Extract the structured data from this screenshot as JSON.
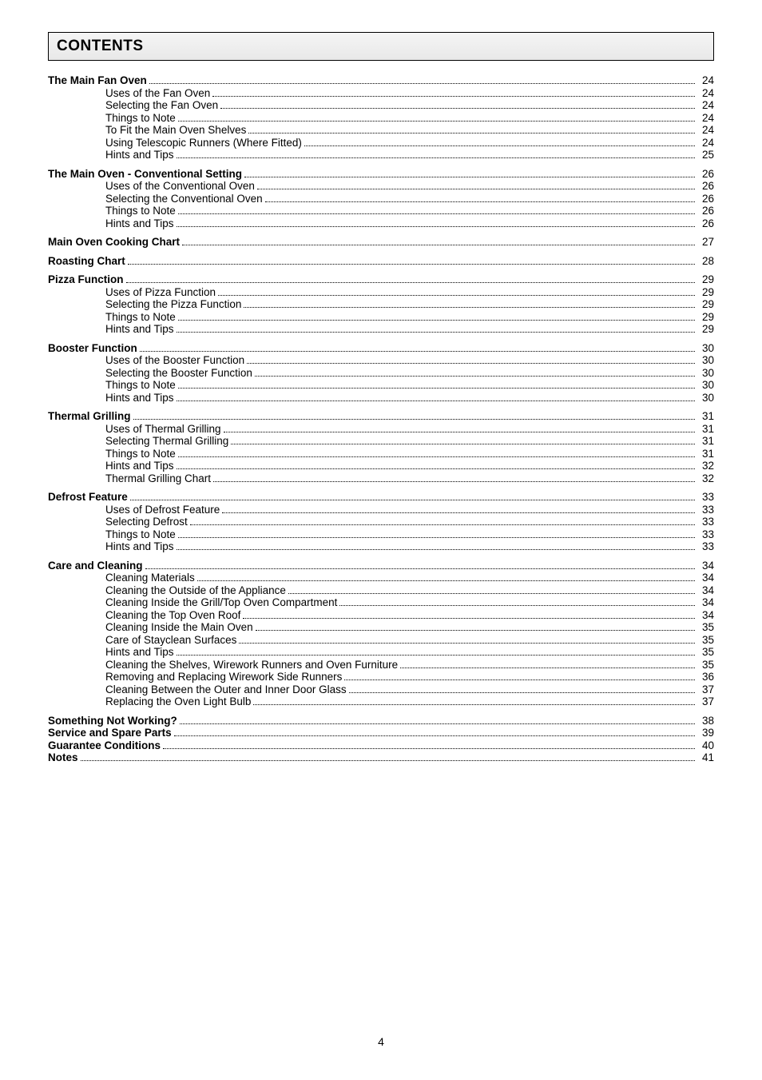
{
  "header": {
    "title": "CONTENTS"
  },
  "footer": {
    "page_number": "4"
  },
  "toc": [
    {
      "level": 0,
      "text": "The Main Fan Oven",
      "page": "24"
    },
    {
      "level": 1,
      "text": "Uses of the Fan Oven",
      "page": "24"
    },
    {
      "level": 1,
      "text": "Selecting the Fan Oven",
      "page": "24"
    },
    {
      "level": 1,
      "text": "Things to Note",
      "page": "24"
    },
    {
      "level": 1,
      "text": "To Fit the Main Oven Shelves",
      "page": "24"
    },
    {
      "level": 1,
      "text": "Using Telescopic Runners (Where Fitted)",
      "page": "24"
    },
    {
      "level": 1,
      "text": "Hints and Tips",
      "page": "25",
      "gap_after": true
    },
    {
      "level": 0,
      "text": "The Main Oven - Conventional Setting",
      "page": "26"
    },
    {
      "level": 1,
      "text": "Uses of the Conventional Oven",
      "page": "26"
    },
    {
      "level": 1,
      "text": "Selecting the Conventional Oven",
      "page": "26"
    },
    {
      "level": 1,
      "text": "Things to Note",
      "page": "26"
    },
    {
      "level": 1,
      "text": "Hints and Tips",
      "page": "26",
      "gap_after": true
    },
    {
      "level": 0,
      "text": "Main Oven Cooking Chart",
      "page": "27",
      "gap_after": true
    },
    {
      "level": 0,
      "text": "Roasting Chart",
      "page": "28",
      "gap_after": true
    },
    {
      "level": 0,
      "text": "Pizza Function",
      "page": "29"
    },
    {
      "level": 1,
      "text": "Uses of Pizza Function",
      "page": "29"
    },
    {
      "level": 1,
      "text": "Selecting the Pizza Function",
      "page": "29"
    },
    {
      "level": 1,
      "text": "Things to Note",
      "page": "29"
    },
    {
      "level": 1,
      "text": "Hints and Tips",
      "page": "29",
      "gap_after": true
    },
    {
      "level": 0,
      "text": "Booster Function",
      "page": "30"
    },
    {
      "level": 1,
      "text": "Uses of the Booster Function",
      "page": "30"
    },
    {
      "level": 1,
      "text": "Selecting the Booster Function",
      "page": "30"
    },
    {
      "level": 1,
      "text": "Things to Note",
      "page": "30"
    },
    {
      "level": 1,
      "text": "Hints and Tips",
      "page": "30",
      "gap_after": true
    },
    {
      "level": 0,
      "text": "Thermal Grilling",
      "page": "31"
    },
    {
      "level": 1,
      "text": "Uses of Thermal Grilling",
      "page": "31"
    },
    {
      "level": 1,
      "text": "Selecting Thermal Grilling",
      "page": "31"
    },
    {
      "level": 1,
      "text": "Things to Note",
      "page": "31"
    },
    {
      "level": 1,
      "text": "Hints and Tips",
      "page": "32"
    },
    {
      "level": 1,
      "text": "Thermal Grilling Chart",
      "page": "32",
      "gap_after": true
    },
    {
      "level": 0,
      "text": "Defrost Feature",
      "page": "33"
    },
    {
      "level": 1,
      "text": "Uses of Defrost Feature",
      "page": "33"
    },
    {
      "level": 1,
      "text": "Selecting Defrost",
      "page": "33"
    },
    {
      "level": 1,
      "text": "Things to Note",
      "page": "33"
    },
    {
      "level": 1,
      "text": "Hints and Tips",
      "page": "33",
      "gap_after": true
    },
    {
      "level": 0,
      "text": "Care and Cleaning",
      "page": "34"
    },
    {
      "level": 1,
      "text": "Cleaning Materials",
      "page": "34"
    },
    {
      "level": 1,
      "text": "Cleaning the Outside of the Appliance",
      "page": "34"
    },
    {
      "level": 1,
      "text": "Cleaning Inside the Grill/Top Oven Compartment",
      "page": "34"
    },
    {
      "level": 1,
      "text": "Cleaning the Top Oven Roof",
      "page": "34"
    },
    {
      "level": 1,
      "text": "Cleaning Inside the Main Oven",
      "page": "35"
    },
    {
      "level": 1,
      "text": "Care of Stayclean Surfaces",
      "page": "35"
    },
    {
      "level": 1,
      "text": "Hints and Tips",
      "page": "35"
    },
    {
      "level": 1,
      "text": "Cleaning the Shelves, Wirework Runners and Oven Furniture",
      "page": "35"
    },
    {
      "level": 1,
      "text": "Removing and Replacing Wirework Side Runners",
      "page": "36"
    },
    {
      "level": 1,
      "text": "Cleaning Between the Outer and Inner Door Glass",
      "page": "37"
    },
    {
      "level": 1,
      "text": "Replacing the Oven Light Bulb",
      "page": "37",
      "gap_after": true
    },
    {
      "level": 0,
      "text": "Something Not Working?",
      "page": "38"
    },
    {
      "level": 0,
      "text": "Service and Spare Parts",
      "page": "39"
    },
    {
      "level": 0,
      "text": "Guarantee Conditions",
      "page": "40"
    },
    {
      "level": 0,
      "text": "Notes",
      "page": "41"
    }
  ]
}
